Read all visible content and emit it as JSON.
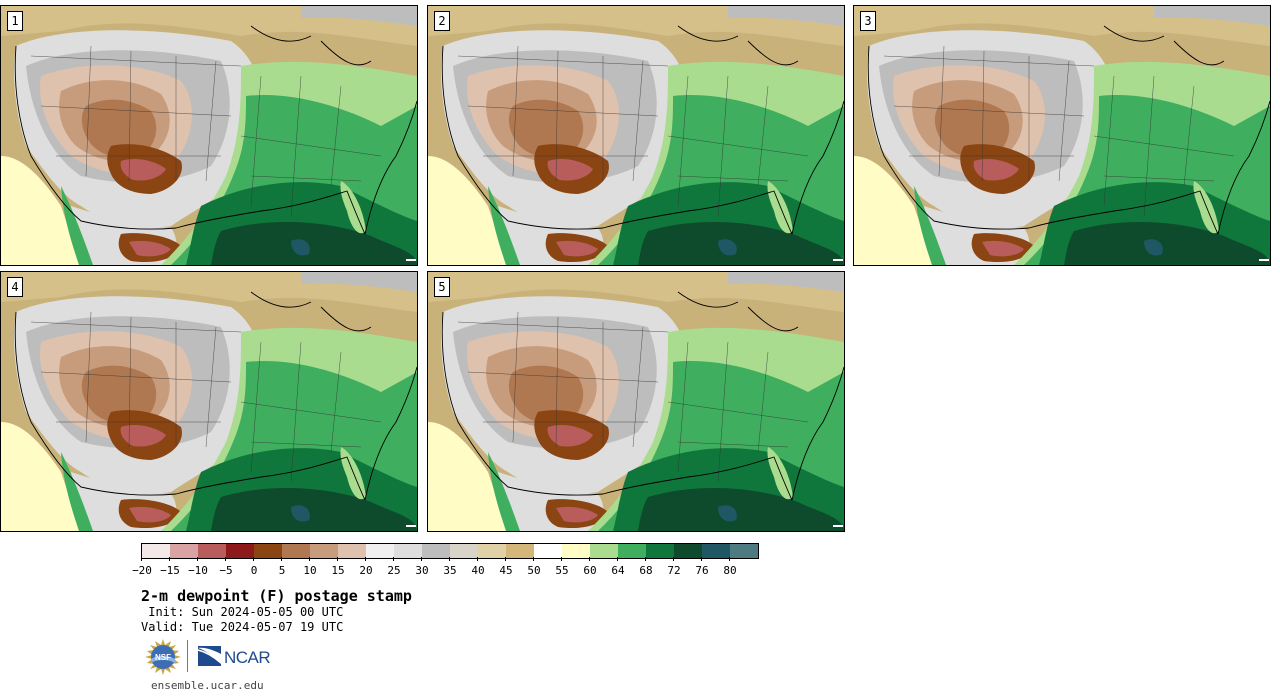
{
  "panels": [
    {
      "label": "1"
    },
    {
      "label": "2"
    },
    {
      "label": "3"
    },
    {
      "label": "4"
    },
    {
      "label": "5"
    }
  ],
  "colorbar": {
    "colors": [
      "#f4e9e9",
      "#d9a3a3",
      "#b85c5c",
      "#8c1a1a",
      "#8b4513",
      "#b07850",
      "#c79c7c",
      "#dfc2ad",
      "#f0f0f0",
      "#dedede",
      "#bdbdbd",
      "#d9d4c8",
      "#e0d2a6",
      "#d4b67a",
      "#ffffff",
      "#fffdc5",
      "#a9dc8e",
      "#3fae5e",
      "#10773c",
      "#0e4a2c",
      "#1f5765",
      "#4e7b82"
    ],
    "tick_labels": [
      "−20",
      "−15",
      "−10",
      "−5",
      "0",
      "5",
      "10",
      "15",
      "20",
      "25",
      "30",
      "35",
      "40",
      "45",
      "50",
      "55",
      "60",
      "64",
      "68",
      "72",
      "76",
      "80"
    ]
  },
  "title": "2-m dewpoint (F) postage stamp",
  "init": " Init: Sun 2024-05-05 00 UTC",
  "valid": "Valid: Tue 2024-05-07 19 UTC",
  "logos": {
    "ncar_text": "NCAR"
  },
  "footer": {
    "site": "ensemble.ucar.edu"
  }
}
